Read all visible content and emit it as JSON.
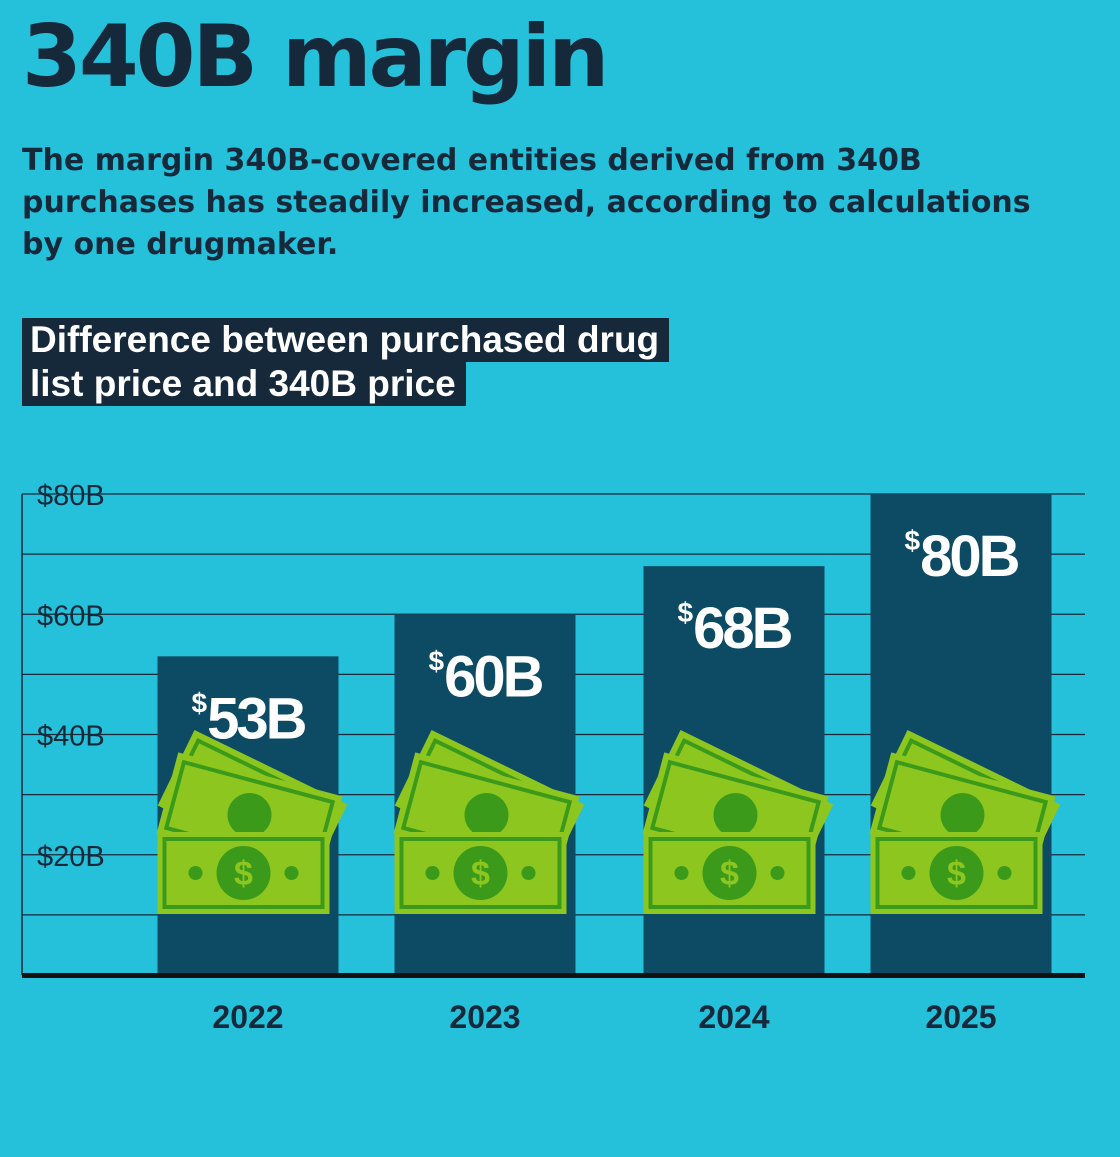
{
  "header": {
    "title": "340B margin",
    "subtitle": "The margin 340B-covered entities derived from 340B purchases has steadily increased, according to calculations by one drugmaker."
  },
  "chart_heading": {
    "line1": "Difference between purchased drug",
    "line2": "list price and 340B price"
  },
  "colors": {
    "background": "#25c0da",
    "bar": "#0c4b63",
    "text": "#16293b",
    "money_light": "#8cc61f",
    "money_dark": "#3c9a1b"
  },
  "icons": {
    "bar_decoration": "money-stack-icon"
  },
  "chart_data": {
    "type": "bar",
    "categories": [
      "2022",
      "2023",
      "2024",
      "2025"
    ],
    "values": [
      53,
      60,
      68,
      80
    ],
    "value_labels": [
      "53B",
      "60B",
      "68B",
      "80B"
    ],
    "value_prefix": "$",
    "y_ticks": [
      20,
      40,
      60,
      80
    ],
    "y_tick_labels": [
      "$20B",
      "$40B",
      "$60B",
      "$80B"
    ],
    "ylim": [
      0,
      80
    ],
    "grid": true,
    "xlabel": "",
    "ylabel": ""
  }
}
